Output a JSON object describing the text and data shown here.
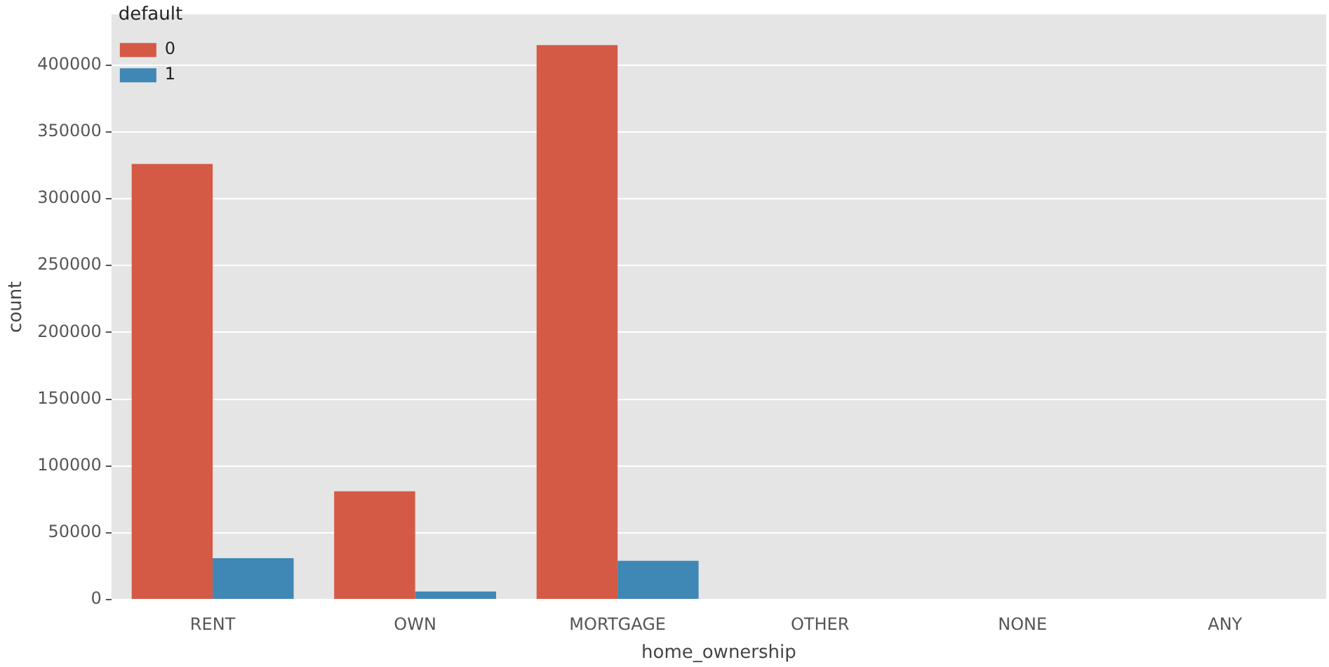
{
  "chart_data": {
    "type": "bar",
    "xlabel": "home_ownership",
    "ylabel": "count",
    "legend_title": "default",
    "categories": [
      "RENT",
      "OWN",
      "MORTGAGE",
      "OTHER",
      "NONE",
      "ANY"
    ],
    "series": [
      {
        "name": "0",
        "color": "#d45a45",
        "values": [
          326000,
          81000,
          415000,
          0,
          0,
          0
        ]
      },
      {
        "name": "1",
        "color": "#3f87b5",
        "values": [
          31000,
          6000,
          29000,
          0,
          0,
          0
        ]
      }
    ],
    "ylim": [
      0,
      438000
    ],
    "yticks": [
      0,
      50000,
      100000,
      150000,
      200000,
      250000,
      300000,
      350000,
      400000
    ],
    "grid": "y",
    "legend": "top left"
  }
}
